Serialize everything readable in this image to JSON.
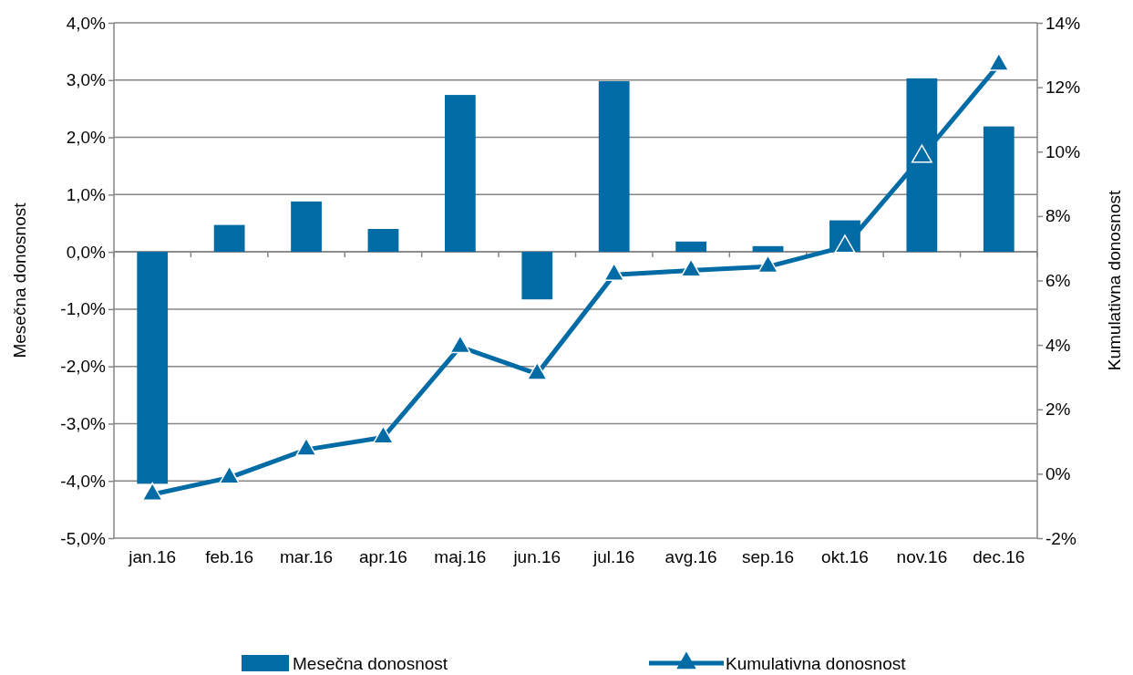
{
  "chart_data": {
    "type": "bar",
    "ylabel": "Mesečna donosnost",
    "y2label": "Kumulativna donosnost",
    "categories": [
      "jan.16",
      "feb.16",
      "mar.16",
      "apr.16",
      "maj.16",
      "jun.16",
      "jul.16",
      "avg.16",
      "sep.16",
      "okt.16",
      "nov.16",
      "dec.16"
    ],
    "series": [
      {
        "name": "Mesečna donosnost",
        "color": "#006ba5",
        "values": [
          -4.05,
          0.47,
          0.88,
          0.4,
          2.74,
          -0.83,
          2.98,
          0.18,
          0.1,
          0.55,
          3.03,
          2.19
        ]
      },
      {
        "name": "Kumulativna donosnost",
        "type": "line",
        "axis": "y2",
        "color": "#006ba5",
        "marker": "triangle",
        "values": [
          -0.64,
          -0.12,
          0.75,
          1.13,
          3.94,
          3.1,
          6.18,
          6.31,
          6.43,
          7.05,
          9.85,
          12.7
        ]
      }
    ],
    "ylim": [
      -5,
      4
    ],
    "yticks": [
      {
        "value": -5,
        "label": "-5,0%"
      },
      {
        "value": -4,
        "label": "-4,0%"
      },
      {
        "value": -3,
        "label": "-3,0%"
      },
      {
        "value": -2,
        "label": "-2,0%"
      },
      {
        "value": -1,
        "label": "-1,0%"
      },
      {
        "value": 0,
        "label": "0,0%"
      },
      {
        "value": 1,
        "label": "1,0%"
      },
      {
        "value": 2,
        "label": "2,0%"
      },
      {
        "value": 3,
        "label": "3,0%"
      },
      {
        "value": 4,
        "label": "4,0%"
      }
    ],
    "y2lim": [
      -2,
      14
    ],
    "y2ticks": [
      {
        "value": -2,
        "label": "-2%"
      },
      {
        "value": 0,
        "label": "0%"
      },
      {
        "value": 2,
        "label": "2%"
      },
      {
        "value": 4,
        "label": "4%"
      },
      {
        "value": 6,
        "label": "6%"
      },
      {
        "value": 8,
        "label": "8%"
      },
      {
        "value": 10,
        "label": "10%"
      },
      {
        "value": 12,
        "label": "12%"
      },
      {
        "value": 14,
        "label": "14%"
      }
    ],
    "grid": "y",
    "legend": "bottom"
  }
}
